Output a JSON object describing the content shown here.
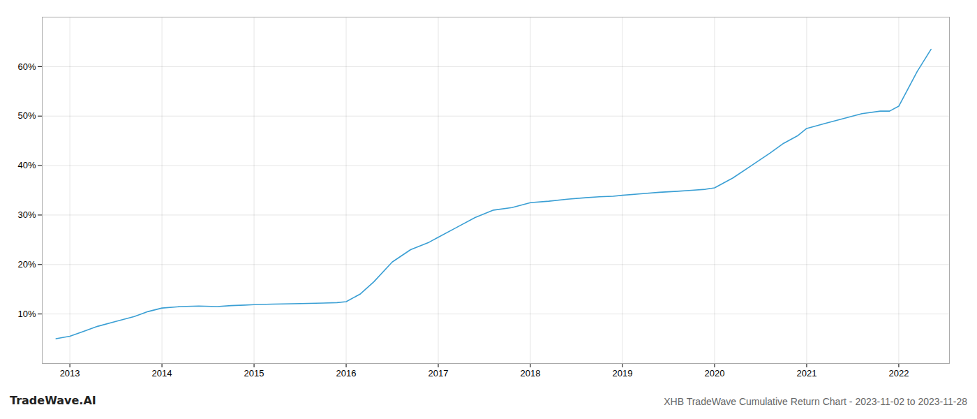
{
  "chart_data": {
    "type": "line",
    "title": "XHB TradeWave Cumulative Return Chart - 2023-11-02 to 2023-11-28",
    "annotations": [
      {
        "text": "TradeWave.AI"
      }
    ],
    "x": [
      2012.85,
      2013.0,
      2013.15,
      2013.3,
      2013.5,
      2013.7,
      2013.85,
      2014.0,
      2014.2,
      2014.4,
      2014.6,
      2014.75,
      2014.9,
      2015.0,
      2015.2,
      2015.5,
      2015.75,
      2015.9,
      2016.0,
      2016.15,
      2016.3,
      2016.5,
      2016.7,
      2016.9,
      2017.0,
      2017.2,
      2017.4,
      2017.6,
      2017.8,
      2017.9,
      2018.0,
      2018.2,
      2018.4,
      2018.6,
      2018.75,
      2018.9,
      2019.0,
      2019.2,
      2019.4,
      2019.6,
      2019.75,
      2019.9,
      2020.0,
      2020.2,
      2020.4,
      2020.6,
      2020.75,
      2020.9,
      2021.0,
      2021.2,
      2021.4,
      2021.6,
      2021.8,
      2021.9,
      2022.0,
      2022.2,
      2022.35
    ],
    "values": [
      5.0,
      5.5,
      6.5,
      7.5,
      8.5,
      9.5,
      10.5,
      11.2,
      11.5,
      11.6,
      11.5,
      11.7,
      11.8,
      11.9,
      12.0,
      12.1,
      12.2,
      12.3,
      12.5,
      14.0,
      16.5,
      20.5,
      23.0,
      24.5,
      25.5,
      27.5,
      29.5,
      31.0,
      31.5,
      32.0,
      32.5,
      32.8,
      33.2,
      33.5,
      33.7,
      33.8,
      34.0,
      34.3,
      34.6,
      34.8,
      35.0,
      35.2,
      35.5,
      37.5,
      40.0,
      42.5,
      44.5,
      46.0,
      47.5,
      48.5,
      49.5,
      50.5,
      51.0,
      51.0,
      52.0,
      59.0,
      63.5
    ],
    "color": "#3a9fd4",
    "xlim": [
      2012.7,
      2022.55
    ],
    "ylim": [
      0,
      70
    ],
    "xticks": [
      2013,
      2014,
      2015,
      2016,
      2017,
      2018,
      2019,
      2020,
      2021,
      2022
    ],
    "yticks": [
      {
        "value": 10,
        "label": "10%"
      },
      {
        "value": 20,
        "label": "20%"
      },
      {
        "value": 30,
        "label": "30%"
      },
      {
        "value": 40,
        "label": "40%"
      },
      {
        "value": 50,
        "label": "50%"
      },
      {
        "value": 60,
        "label": "60%"
      }
    ],
    "grid": true
  }
}
